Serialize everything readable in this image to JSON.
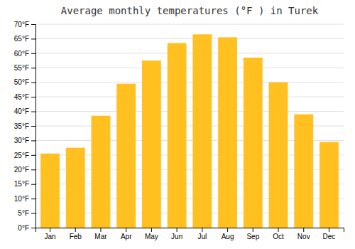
{
  "chart_data": {
    "type": "bar",
    "title": "Average monthly temperatures (°F ) in Turek",
    "categories": [
      "Jan",
      "Feb",
      "Mar",
      "Apr",
      "May",
      "Jun",
      "Jul",
      "Aug",
      "Sep",
      "Oct",
      "Nov",
      "Dec"
    ],
    "values": [
      25.5,
      27.5,
      38.5,
      49.5,
      57.5,
      63.5,
      66.5,
      65.5,
      58.5,
      50.0,
      39.0,
      29.5
    ],
    "color": "#FFC020",
    "ylim": [
      0,
      70
    ],
    "yticks": [
      {
        "value": 0,
        "label": "0°F"
      },
      {
        "value": 5,
        "label": "5°F"
      },
      {
        "value": 10,
        "label": "10°F"
      },
      {
        "value": 15,
        "label": "15°F"
      },
      {
        "value": 20,
        "label": "20°F"
      },
      {
        "value": 25,
        "label": "25°F"
      },
      {
        "value": 30,
        "label": "30°F"
      },
      {
        "value": 35,
        "label": "35°F"
      },
      {
        "value": 40,
        "label": "40°F"
      },
      {
        "value": 45,
        "label": "45°F"
      },
      {
        "value": 50,
        "label": "50°F"
      },
      {
        "value": 55,
        "label": "55°F"
      },
      {
        "value": 60,
        "label": "60°F"
      },
      {
        "value": 65,
        "label": "65°F"
      },
      {
        "value": 70,
        "label": "70°F"
      }
    ],
    "grid": true
  }
}
